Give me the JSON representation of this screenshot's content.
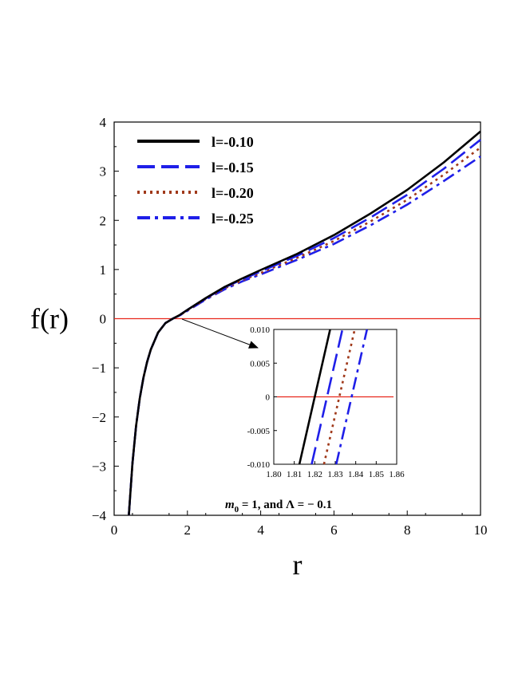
{
  "chart_data": [
    {
      "type": "line",
      "title": "",
      "xlabel": "r",
      "ylabel": "f(r)",
      "xlim": [
        0,
        10
      ],
      "ylim": [
        -4,
        4
      ],
      "x_ticks": [
        "0",
        "2",
        "4",
        "6",
        "8",
        "10"
      ],
      "y_ticks": [
        "4",
        "3",
        "2",
        "1",
        "0",
        "−1",
        "−2",
        "−3",
        "−4"
      ],
      "grid": false,
      "legend_position": "top-left",
      "reference_line": {
        "y": 0,
        "color": "#e8271c"
      },
      "x": [
        0.4,
        0.5,
        0.6,
        0.7,
        0.8,
        0.9,
        1.0,
        1.2,
        1.4,
        1.6,
        1.8,
        2.0,
        2.5,
        3.0,
        3.5,
        4.0,
        5.0,
        6.0,
        7.0,
        8.0,
        9.0,
        10.0
      ],
      "series": [
        {
          "name": "l=-0.10",
          "color": "#000000",
          "dash": "solid",
          "values": [
            -4.0,
            -2.95,
            -2.18,
            -1.62,
            -1.2,
            -0.88,
            -0.63,
            -0.28,
            -0.09,
            0.0,
            0.08,
            0.18,
            0.42,
            0.64,
            0.82,
            0.99,
            1.32,
            1.7,
            2.14,
            2.62,
            3.18,
            3.81
          ]
        },
        {
          "name": "l=-0.15",
          "color": "#1f1fe8",
          "dash": "long-dash",
          "values": [
            -4.0,
            -2.95,
            -2.18,
            -1.62,
            -1.2,
            -0.88,
            -0.63,
            -0.28,
            -0.09,
            0.0,
            0.08,
            0.18,
            0.41,
            0.63,
            0.8,
            0.96,
            1.28,
            1.64,
            2.06,
            2.52,
            3.05,
            3.64
          ]
        },
        {
          "name": "l=-0.20",
          "color": "#a0391a",
          "dash": "dotted",
          "values": [
            -4.0,
            -2.95,
            -2.18,
            -1.62,
            -1.2,
            -0.88,
            -0.63,
            -0.28,
            -0.09,
            0.0,
            0.07,
            0.17,
            0.4,
            0.61,
            0.78,
            0.93,
            1.24,
            1.58,
            1.98,
            2.42,
            2.93,
            3.48
          ]
        },
        {
          "name": "l=-0.25",
          "color": "#1f1fe8",
          "dash": "dash-dot",
          "values": [
            -4.0,
            -2.95,
            -2.18,
            -1.62,
            -1.2,
            -0.88,
            -0.63,
            -0.28,
            -0.09,
            0.0,
            0.07,
            0.16,
            0.39,
            0.59,
            0.76,
            0.9,
            1.2,
            1.52,
            1.9,
            2.32,
            2.8,
            3.3
          ]
        }
      ]
    },
    {
      "type": "line",
      "title": "",
      "xlim": [
        1.8,
        1.86
      ],
      "ylim": [
        -0.01,
        0.01
      ],
      "x_ticks": [
        "1.80",
        "1.81",
        "1.82",
        "1.83",
        "1.84",
        "1.85",
        "1.86"
      ],
      "y_ticks": [
        "0.010",
        "0.005",
        "0",
        "-0.005",
        "-0.010"
      ],
      "reference_line": {
        "y": 0,
        "color": "#e8271c"
      },
      "series": [
        {
          "name": "l=-0.10",
          "x": [
            1.8125,
            1.8275
          ],
          "values": [
            -0.01,
            0.01
          ]
        },
        {
          "name": "l=-0.15",
          "x": [
            1.8185,
            1.8335
          ],
          "values": [
            -0.01,
            0.01
          ]
        },
        {
          "name": "l=-0.20",
          "x": [
            1.8245,
            1.8395
          ],
          "values": [
            -0.01,
            0.01
          ]
        },
        {
          "name": "l=-0.25",
          "x": [
            1.8305,
            1.8455
          ],
          "values": [
            -0.01,
            0.01
          ]
        }
      ]
    }
  ],
  "annotation": {
    "m_sym": "m",
    "m_sub": "0",
    "rest": " = 1, and Λ = − 0.1"
  }
}
